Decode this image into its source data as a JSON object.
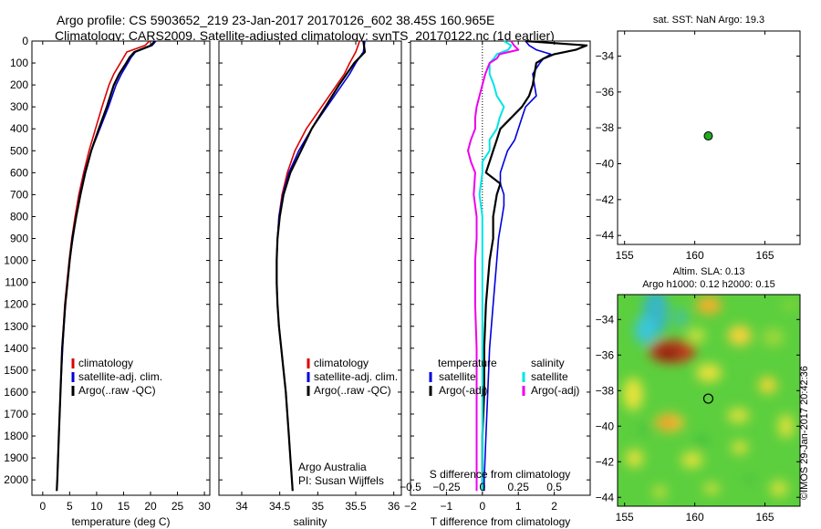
{
  "header": {
    "title_line1": "Argo profile: CS 5903652_219 23-Jan-2017 20170126_602 38.45S 160.965E",
    "title_line2": "Climatology: CARS2009. Satellite-adjusted climatology: synTS_20170122.nc (1d earlier)"
  },
  "colors": {
    "climatology": "#dd0000",
    "satellite": "#0000dd",
    "argo": "#000000",
    "satellite_s": "#00e5e5",
    "argo_s": "#ee00ee",
    "marker": "#22aa22"
  },
  "footer": {
    "stamp": "©IMOS 29-Jan-2017 20:42:36"
  },
  "chart_data": [
    {
      "type": "line",
      "xlabel": "temperature (deg C)",
      "xlim": [
        -2,
        31
      ],
      "xticks": [
        0,
        5,
        10,
        15,
        20,
        25,
        30
      ],
      "ylim": [
        2070,
        0
      ],
      "yticks": [
        0,
        100,
        200,
        300,
        400,
        500,
        600,
        700,
        800,
        900,
        1000,
        1100,
        1200,
        1300,
        1400,
        1500,
        1600,
        1700,
        1800,
        1900,
        2000
      ],
      "legend": [
        "climatology",
        "satellite-adj. clim.",
        "Argo(..raw -QC)"
      ],
      "legend_placement": "lower-left",
      "series": [
        {
          "name": "climatology",
          "color": "red",
          "depth": [
            0,
            20,
            50,
            75,
            100,
            150,
            200,
            300,
            400,
            500,
            600,
            700,
            800,
            900,
            1000,
            1200,
            1400,
            1600,
            1800,
            2000,
            2050
          ],
          "values": [
            19.8,
            19.0,
            15.6,
            15.0,
            14.4,
            13.2,
            12.3,
            11.0,
            9.8,
            8.6,
            7.6,
            6.7,
            6.0,
            5.4,
            4.9,
            4.1,
            3.6,
            3.3,
            3.0,
            2.7,
            2.6
          ]
        },
        {
          "name": "satellite-adj. clim.",
          "color": "blue",
          "depth": [
            0,
            20,
            50,
            75,
            100,
            150,
            200,
            300,
            400,
            500,
            600,
            700,
            800,
            900,
            1000,
            1200,
            1400,
            1600,
            1800,
            2000,
            2050
          ],
          "values": [
            21.0,
            20.3,
            17.2,
            16.4,
            15.8,
            14.6,
            13.6,
            12.2,
            10.6,
            9.0,
            7.8,
            6.9,
            6.2,
            5.6,
            5.0,
            4.2,
            3.7,
            3.3,
            3.0,
            2.7,
            2.6
          ]
        },
        {
          "name": "Argo(..raw -QC)",
          "color": "black",
          "depth": [
            0,
            20,
            50,
            75,
            100,
            150,
            200,
            300,
            400,
            500,
            600,
            700,
            800,
            900,
            1000,
            1200,
            1400,
            1600,
            1800,
            2000,
            2050
          ],
          "values": [
            20.8,
            20.1,
            17.0,
            16.1,
            15.5,
            14.2,
            13.2,
            11.9,
            10.4,
            9.0,
            7.9,
            7.0,
            6.2,
            5.5,
            5.0,
            4.2,
            3.6,
            3.3,
            3.0,
            2.7,
            2.6
          ]
        }
      ]
    },
    {
      "type": "line",
      "xlabel": "salinity",
      "xlim": [
        33.7,
        36.1
      ],
      "xticks": [
        34,
        34.5,
        35,
        35.5,
        36
      ],
      "ylim": [
        2070,
        0
      ],
      "legend": [
        "climatology",
        "satellite-adj. clim.",
        "Argo(..raw -QC)"
      ],
      "legend_placement": "lower-left",
      "annotation_line1": "Argo Australia",
      "annotation_line2": "PI: Susan Wijffels",
      "series": [
        {
          "name": "climatology",
          "color": "red",
          "depth": [
            0,
            50,
            100,
            150,
            200,
            300,
            400,
            500,
            600,
            700,
            800,
            900,
            1000,
            1100,
            1200,
            1300,
            1400,
            1500,
            1600,
            1700,
            1800,
            1900,
            2000,
            2050
          ],
          "values": [
            35.55,
            35.5,
            35.42,
            35.35,
            35.25,
            35.05,
            34.85,
            34.7,
            34.6,
            34.53,
            34.49,
            34.47,
            34.46,
            34.46,
            34.47,
            34.49,
            34.52,
            34.55,
            34.58,
            34.6,
            34.62,
            34.64,
            34.66,
            34.67
          ]
        },
        {
          "name": "satellite-adj. clim.",
          "color": "blue",
          "depth": [
            0,
            50,
            100,
            150,
            200,
            300,
            400,
            500,
            600,
            700,
            800,
            900,
            1000,
            1100,
            1200,
            1300,
            1400,
            1500,
            1600,
            1700,
            1800,
            1900,
            2000,
            2050
          ],
          "values": [
            35.62,
            35.6,
            35.5,
            35.42,
            35.32,
            35.12,
            34.92,
            34.75,
            34.62,
            34.54,
            34.49,
            34.47,
            34.46,
            34.46,
            34.47,
            34.49,
            34.52,
            34.55,
            34.58,
            34.6,
            34.62,
            34.64,
            34.66,
            34.67
          ]
        },
        {
          "name": "Argo(..raw -QC)",
          "color": "black",
          "depth": [
            0,
            50,
            100,
            150,
            200,
            300,
            400,
            500,
            600,
            700,
            800,
            900,
            1000,
            1100,
            1200,
            1300,
            1400,
            1500,
            1600,
            1700,
            1800,
            1900,
            2000,
            2050
          ],
          "values": [
            35.6,
            35.62,
            35.48,
            35.38,
            35.28,
            35.1,
            34.92,
            34.78,
            34.64,
            34.55,
            34.5,
            34.47,
            34.46,
            34.46,
            34.47,
            34.49,
            34.52,
            34.55,
            34.58,
            34.6,
            34.62,
            34.64,
            34.66,
            34.67
          ]
        }
      ]
    },
    {
      "type": "line",
      "xlabel": "T difference from climatology",
      "top_axis_label": "S difference from climatology",
      "xlim": [
        -2,
        3
      ],
      "xticks": [
        -2,
        -1,
        0,
        1,
        2
      ],
      "top_xticks": [
        -0.5,
        -0.25,
        0,
        0.25,
        0.5
      ],
      "ylim": [
        2070,
        0
      ],
      "legend_left_title": "temperature",
      "legend_right_title": "salinity",
      "legend_left": [
        "satellite",
        "Argo(-adj)"
      ],
      "legend_right": [
        "satellite",
        "Argo(-adj)"
      ],
      "legend_placement": "lower",
      "series": [
        {
          "name": "temperature satellite",
          "color": "blue",
          "depth": [
            0,
            20,
            40,
            60,
            80,
            100,
            150,
            200,
            250,
            300,
            350,
            400,
            450,
            500,
            550,
            600,
            650,
            700,
            750,
            800,
            900,
            1000,
            1100,
            1200,
            1400,
            1600,
            1800,
            2000,
            2050
          ],
          "values": [
            1.2,
            1.3,
            1.5,
            1.9,
            1.7,
            1.6,
            1.4,
            1.45,
            1.5,
            1.2,
            1.1,
            1.0,
            0.9,
            0.7,
            0.6,
            0.5,
            0.5,
            0.6,
            0.6,
            0.55,
            0.45,
            0.4,
            0.35,
            0.3,
            0.2,
            0.15,
            0.1,
            0.05,
            0.05
          ]
        },
        {
          "name": "temperature Argo(-adj)",
          "color": "black",
          "depth": [
            0,
            20,
            40,
            60,
            80,
            100,
            150,
            200,
            250,
            300,
            350,
            400,
            450,
            500,
            550,
            600,
            650,
            700,
            750,
            800,
            900,
            1000,
            1100,
            1200,
            1400,
            1600,
            1800,
            2000,
            2050
          ],
          "values": [
            1.2,
            2.9,
            2.6,
            2.0,
            1.7,
            1.5,
            1.45,
            1.4,
            1.3,
            1.1,
            0.8,
            0.5,
            0.4,
            0.3,
            0.2,
            0.1,
            0.5,
            0.4,
            0.35,
            0.3,
            0.3,
            0.2,
            0.15,
            0.1,
            0.05,
            0.05,
            0.0,
            0.0,
            0.0
          ]
        },
        {
          "name": "salinity satellite",
          "color": "cyan",
          "depth": [
            0,
            20,
            40,
            60,
            80,
            100,
            150,
            200,
            250,
            300,
            350,
            400,
            450,
            500,
            550,
            600,
            700,
            800,
            900,
            1000,
            1200,
            1400,
            1600,
            1800,
            2000,
            2050
          ],
          "values": [
            0.15,
            0.2,
            0.18,
            0.1,
            0.08,
            0.05,
            0.05,
            0.08,
            0.1,
            0.15,
            0.12,
            0.1,
            0.05,
            0.05,
            0.0,
            0.0,
            -0.02,
            0.0,
            0.0,
            0.0,
            0.0,
            0.0,
            0.0,
            0.0,
            0.0,
            0.0
          ]
        },
        {
          "name": "salinity Argo(-adj)",
          "color": "magenta",
          "depth": [
            0,
            20,
            40,
            60,
            80,
            100,
            150,
            200,
            250,
            300,
            350,
            400,
            450,
            500,
            550,
            600,
            700,
            800,
            900,
            1000,
            1200,
            1400,
            1600,
            1800,
            2000,
            2050
          ],
          "values": [
            0.2,
            0.22,
            0.25,
            0.12,
            0.1,
            0.05,
            0.02,
            0.0,
            -0.02,
            -0.04,
            -0.05,
            -0.05,
            -0.08,
            -0.1,
            -0.08,
            -0.05,
            -0.06,
            -0.04,
            -0.04,
            -0.05,
            -0.05,
            -0.04,
            -0.04,
            -0.04,
            -0.04,
            -0.04
          ]
        }
      ]
    },
    {
      "type": "scatter",
      "title": "sat. SST: NaN Argo: 19.3",
      "xlim": [
        154.5,
        167.5
      ],
      "xticks": [
        155,
        160,
        165
      ],
      "ylim": [
        -44.5,
        -32.6
      ],
      "yticks": [
        -34,
        -36,
        -38,
        -40,
        -42,
        -44
      ],
      "points": [
        {
          "x": 160.965,
          "y": -38.45
        }
      ]
    },
    {
      "type": "heatmap",
      "title_line1": "Altim. SLA: 0.13",
      "title_line2": "Argo h1000: 0.12 h2000: 0.15",
      "xlim": [
        154.5,
        167.5
      ],
      "xticks": [
        155,
        160,
        165
      ],
      "ylim": [
        -44.5,
        -32.6
      ],
      "yticks": [
        -34,
        -36,
        -38,
        -40,
        -42,
        -44
      ],
      "points": [
        {
          "x": 160.965,
          "y": -38.45
        }
      ]
    }
  ]
}
